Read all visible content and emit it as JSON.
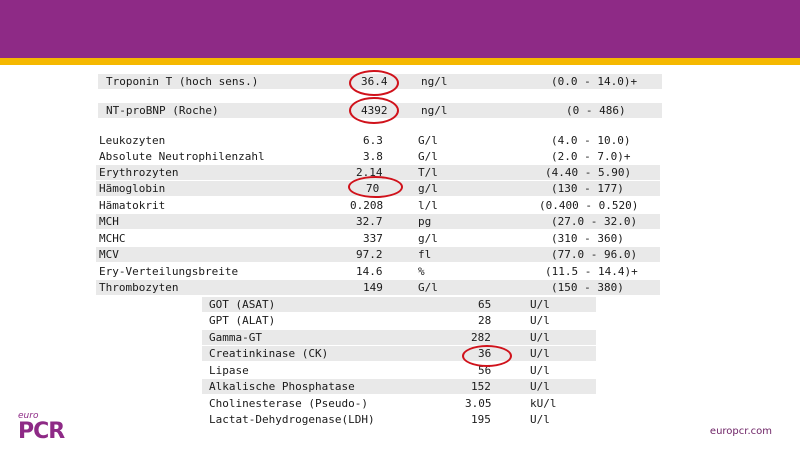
{
  "panel_a": [
    {
      "name": "Troponin T (hoch sens.)",
      "value": "36.4",
      "unit": "ng/l",
      "range": "(0.0 - 14.0)+"
    },
    {
      "name": "NT-proBNP (Roche)",
      "value": "4392",
      "unit": "ng/l",
      "range": "(0 - 486)"
    }
  ],
  "panel_b": [
    {
      "name": "Leukozyten",
      "value": "6.3",
      "unit": "G/l",
      "range": "(4.0 - 10.0)"
    },
    {
      "name": "Absolute Neutrophilenzahl",
      "value": "3.8",
      "unit": "G/l",
      "range": "(2.0 - 7.0)+"
    },
    {
      "name": "Erythrozyten",
      "value": "2.14",
      "unit": "T/l",
      "range": "(4.40 - 5.90)"
    },
    {
      "name": "Hämoglobin",
      "value": "70",
      "unit": "g/l",
      "range": "(130 - 177)"
    },
    {
      "name": "Hämatokrit",
      "value": "0.208",
      "unit": "l/l",
      "range": "(0.400 - 0.520)"
    },
    {
      "name": "MCH",
      "value": "32.7",
      "unit": "pg",
      "range": "(27.0 - 32.0)"
    },
    {
      "name": "MCHC",
      "value": "337",
      "unit": "g/l",
      "range": "(310 - 360)"
    },
    {
      "name": "MCV",
      "value": "97.2",
      "unit": "fl",
      "range": "(77.0 - 96.0)"
    },
    {
      "name": "Ery-Verteilungsbreite",
      "value": "14.6",
      "unit": "%",
      "range": "(11.5 - 14.4)+"
    },
    {
      "name": "Thrombozyten",
      "value": "149",
      "unit": "G/l",
      "range": "(150 - 380)"
    }
  ],
  "panel_c": [
    {
      "name": "GOT (ASAT)",
      "value": "65",
      "unit": "U/l"
    },
    {
      "name": "GPT (ALAT)",
      "value": "28",
      "unit": "U/l"
    },
    {
      "name": "Gamma-GT",
      "value": "282",
      "unit": "U/l"
    },
    {
      "name": "Creatinkinase (CK)",
      "value": "36",
      "unit": "U/l"
    },
    {
      "name": "Lipase",
      "value": "56",
      "unit": "U/l"
    },
    {
      "name": "Alkalische Phosphatase",
      "value": "152",
      "unit": "U/l"
    },
    {
      "name": "Cholinesterase (Pseudo-)",
      "value": "3.05",
      "unit": "kU/l"
    },
    {
      "name": "Lactat-Dehydrogenase(LDH)",
      "value": "195",
      "unit": "U/l"
    }
  ],
  "footer": {
    "logo_small": "euro",
    "logo_main": "PCR",
    "url": "europcr.com"
  },
  "colors": {
    "banner": "#8e2a86",
    "stripe": "#f5b800",
    "highlight": "#d0121b"
  }
}
